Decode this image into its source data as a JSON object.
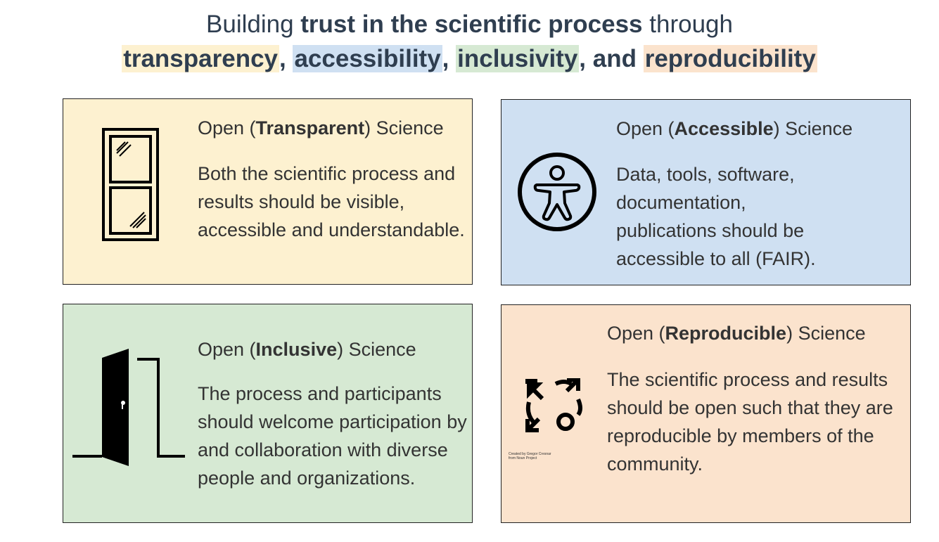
{
  "title": {
    "line1_prefix": "Building ",
    "line1_bold": "trust in the scientific process",
    "line1_suffix": " through",
    "w1": "transparency",
    "sep1": ", ",
    "w2": "accessibility",
    "sep2": ", ",
    "w3": "inclusivity",
    "sep3": ", and ",
    "w4": "reproducibility"
  },
  "cards": [
    {
      "heading_pre": "Open (",
      "heading_bold": "Transparent",
      "heading_post": ") Science",
      "body": "Both the scientific process and results should be visible, accessible and understandable.",
      "icon": "window-icon",
      "color": "#fdf1d0"
    },
    {
      "heading_pre": "Open (",
      "heading_bold": "Accessible",
      "heading_post": ") Science",
      "body": "Data, tools, software, documentation, publications should be accessible to all (FAIR).",
      "icon": "accessibility-icon",
      "color": "#cfe0f2"
    },
    {
      "heading_pre": "Open (",
      "heading_bold": "Inclusive",
      "heading_post": ") Science",
      "body": "The process and participants should welcome participation by and collaboration with diverse people and organizations.",
      "icon": "open-door-icon",
      "color": "#d6e9d3"
    },
    {
      "heading_pre": "Open (",
      "heading_bold": "Reproducible",
      "heading_post": ") Science",
      "body": "The scientific process and results should be open such that they are reproducible by members of the community.",
      "icon": "cycle-arrows-icon",
      "color": "#fbe3cd",
      "credit_line1": "Created by Gregor Cresnar",
      "credit_line2": "from Noun Project"
    }
  ]
}
